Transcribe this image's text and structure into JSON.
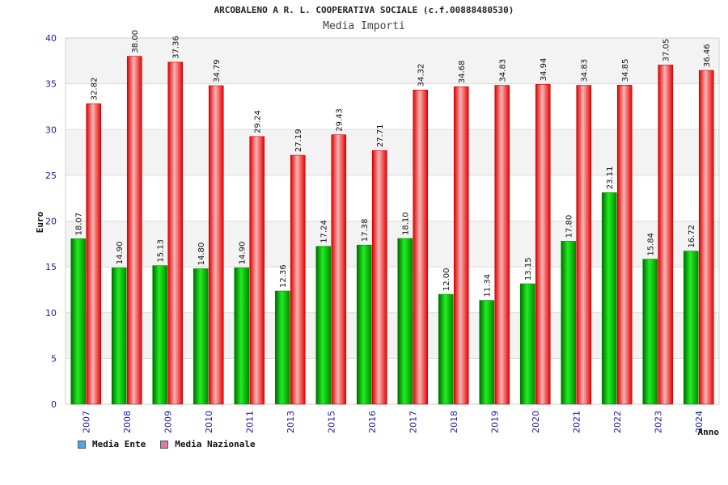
{
  "chart_data": {
    "type": "bar",
    "title": "ARCOBALENO A R. L. COOPERATIVA SOCIALE (c.f.00888480530)",
    "subtitle": "Media Importi",
    "xlabel": "Anno",
    "ylabel": "Euro",
    "ylim": [
      0,
      40
    ],
    "yticks": [
      0,
      5,
      10,
      15,
      20,
      25,
      30,
      35,
      40
    ],
    "grid": true,
    "legend_position": "bottom-left",
    "categories": [
      "2007",
      "2008",
      "2009",
      "2010",
      "2011",
      "2013",
      "2015",
      "2016",
      "2017",
      "2018",
      "2019",
      "2020",
      "2021",
      "2022",
      "2023",
      "2024"
    ],
    "series": [
      {
        "name": "Media Ente",
        "color": "#00b000",
        "legend_color": "#5ba3e8",
        "values": [
          18.07,
          14.9,
          15.13,
          14.8,
          14.9,
          12.36,
          17.24,
          17.38,
          18.1,
          12.0,
          11.34,
          13.15,
          17.8,
          23.11,
          15.84,
          16.72
        ],
        "labels": [
          "18.07",
          "14.90",
          "15.13",
          "14.80",
          "14.90",
          "12.36",
          "17.24",
          "17.38",
          "18.10",
          "12.00",
          "11.34",
          "13.15",
          "17.80",
          "23.11",
          "15.84",
          "16.72"
        ]
      },
      {
        "name": "Media Nazionale",
        "color": "#ee1111",
        "legend_color": "#d97ba5",
        "values": [
          32.82,
          38.0,
          37.36,
          34.79,
          29.24,
          27.19,
          29.43,
          27.71,
          34.32,
          34.68,
          34.83,
          34.94,
          34.83,
          34.85,
          37.05,
          36.46
        ],
        "labels": [
          "32.82",
          "38.00",
          "37.36",
          "34.79",
          "29.24",
          "27.19",
          "29.43",
          "27.71",
          "34.32",
          "34.68",
          "34.83",
          "34.94",
          "34.83",
          "34.85",
          "37.05",
          "36.46"
        ]
      }
    ]
  }
}
